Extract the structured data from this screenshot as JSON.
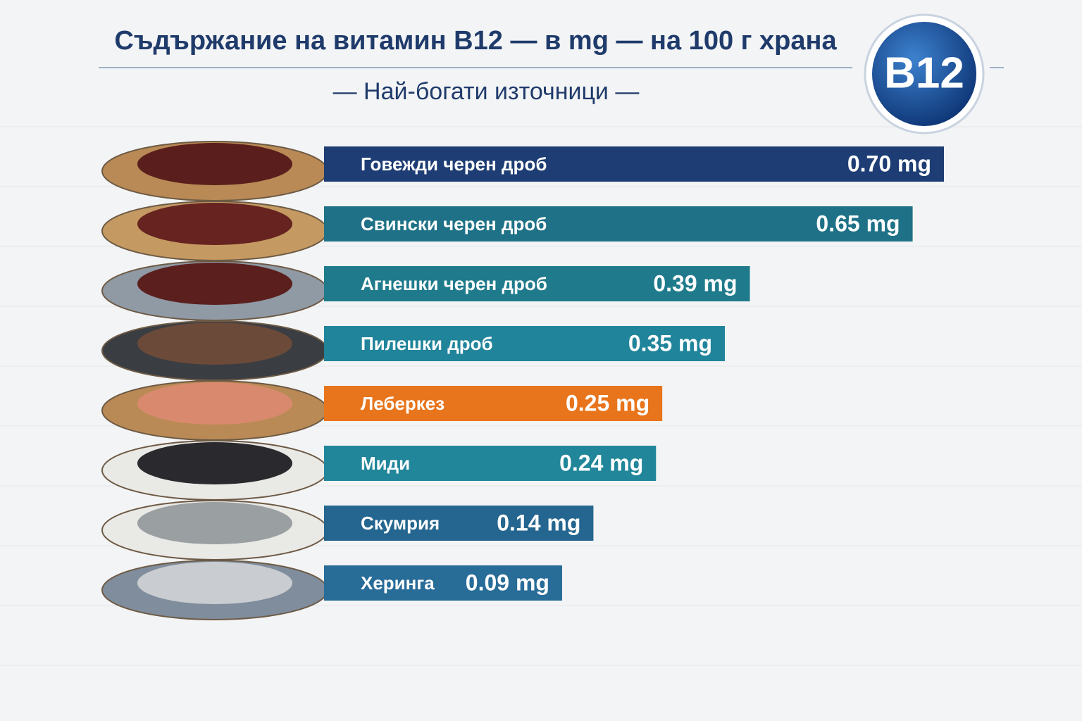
{
  "chart_data": {
    "type": "bar",
    "orientation": "horizontal",
    "title": "Съдържание на витамин B12 — в mg — на 100 г храна",
    "subtitle": "— Най-богати източници —",
    "badge": "B12",
    "categories": [
      "Говежди черен дроб",
      "Свински черен дроб",
      "Агнешки черен дроб",
      "Пилешки дроб",
      "Леберкез",
      "Миди",
      "Скумрия",
      "Херинга"
    ],
    "values": [
      0.7,
      0.65,
      0.39,
      0.35,
      0.25,
      0.24,
      0.14,
      0.09
    ],
    "value_labels": [
      "0.70 mg",
      "0.65 mg",
      "0.39 mg",
      "0.35 mg",
      "0.25 mg",
      "0.24 mg",
      "0.14 mg",
      "0.09 mg"
    ],
    "colors": [
      "#1d3d74",
      "#1e7186",
      "#1f7b8c",
      "#20849a",
      "#e8741c",
      "#22869a",
      "#24668f",
      "#286c98"
    ]
  }
}
